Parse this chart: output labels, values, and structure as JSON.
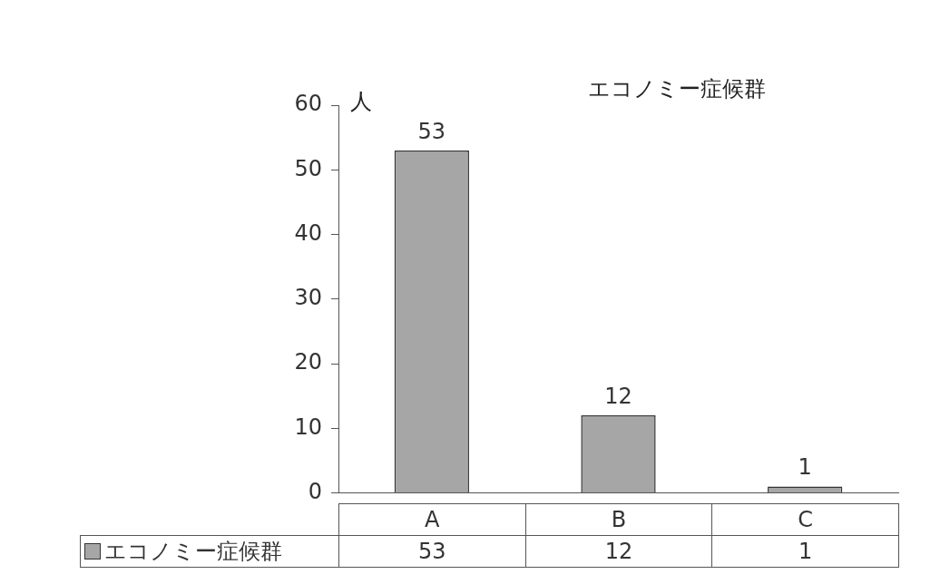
{
  "chart_data": {
    "type": "bar",
    "title": "エコノミー症候群",
    "ylabel": "人",
    "categories": [
      "A",
      "B",
      "C"
    ],
    "series": [
      {
        "name": "エコノミー症候群",
        "color": "#a6a6a6",
        "values": [
          53,
          12,
          1
        ]
      }
    ],
    "annotations": [
      "53",
      "12",
      "1"
    ],
    "ylim": [
      0,
      60
    ],
    "yticks": [
      0,
      10,
      20,
      30,
      40,
      50,
      60
    ],
    "grid": false,
    "legend": "bottom",
    "data_labels": true
  }
}
